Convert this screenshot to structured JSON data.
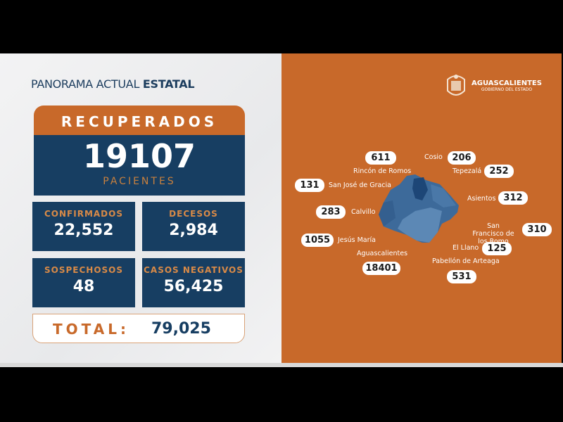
{
  "title": {
    "normal": "PANORAMA ACTUAL ",
    "bold": "ESTATAL"
  },
  "recuperados": {
    "label": "RECUPERADOS",
    "value": "19107",
    "sub": "PACIENTES"
  },
  "stats": [
    {
      "label": "CONFIRMADOS",
      "value": "22,552"
    },
    {
      "label": "DECESOS",
      "value": "2,984"
    },
    {
      "label": "SOSPECHOSOS",
      "value": "48"
    },
    {
      "label": "CASOS NEGATIVOS",
      "value": "56,425"
    }
  ],
  "total": {
    "label": "TOTAL:",
    "value": "79,025"
  },
  "logo": {
    "name": "AGUASCALIENTES",
    "sub": "GOBIERNO DEL ESTADO"
  },
  "municipios": [
    {
      "name": "Rincón de Romos",
      "value": "611"
    },
    {
      "name": "Cosio",
      "value": "206"
    },
    {
      "name": "Tepezalá",
      "value": "252"
    },
    {
      "name": "San José de Gracia",
      "value": "131"
    },
    {
      "name": "Asientos",
      "value": "312"
    },
    {
      "name": "Calvillo",
      "value": "283"
    },
    {
      "name": "San Francisco de los Romo",
      "value": "310"
    },
    {
      "name": "Jesús María",
      "value": "1055"
    },
    {
      "name": "El Llano",
      "value": "125"
    },
    {
      "name": "Aguascalientes",
      "value": "18401"
    },
    {
      "name": "Pabellón de Arteaga",
      "value": "531"
    }
  ],
  "colors": {
    "orange": "#c8692a",
    "navy": "#173e62"
  }
}
